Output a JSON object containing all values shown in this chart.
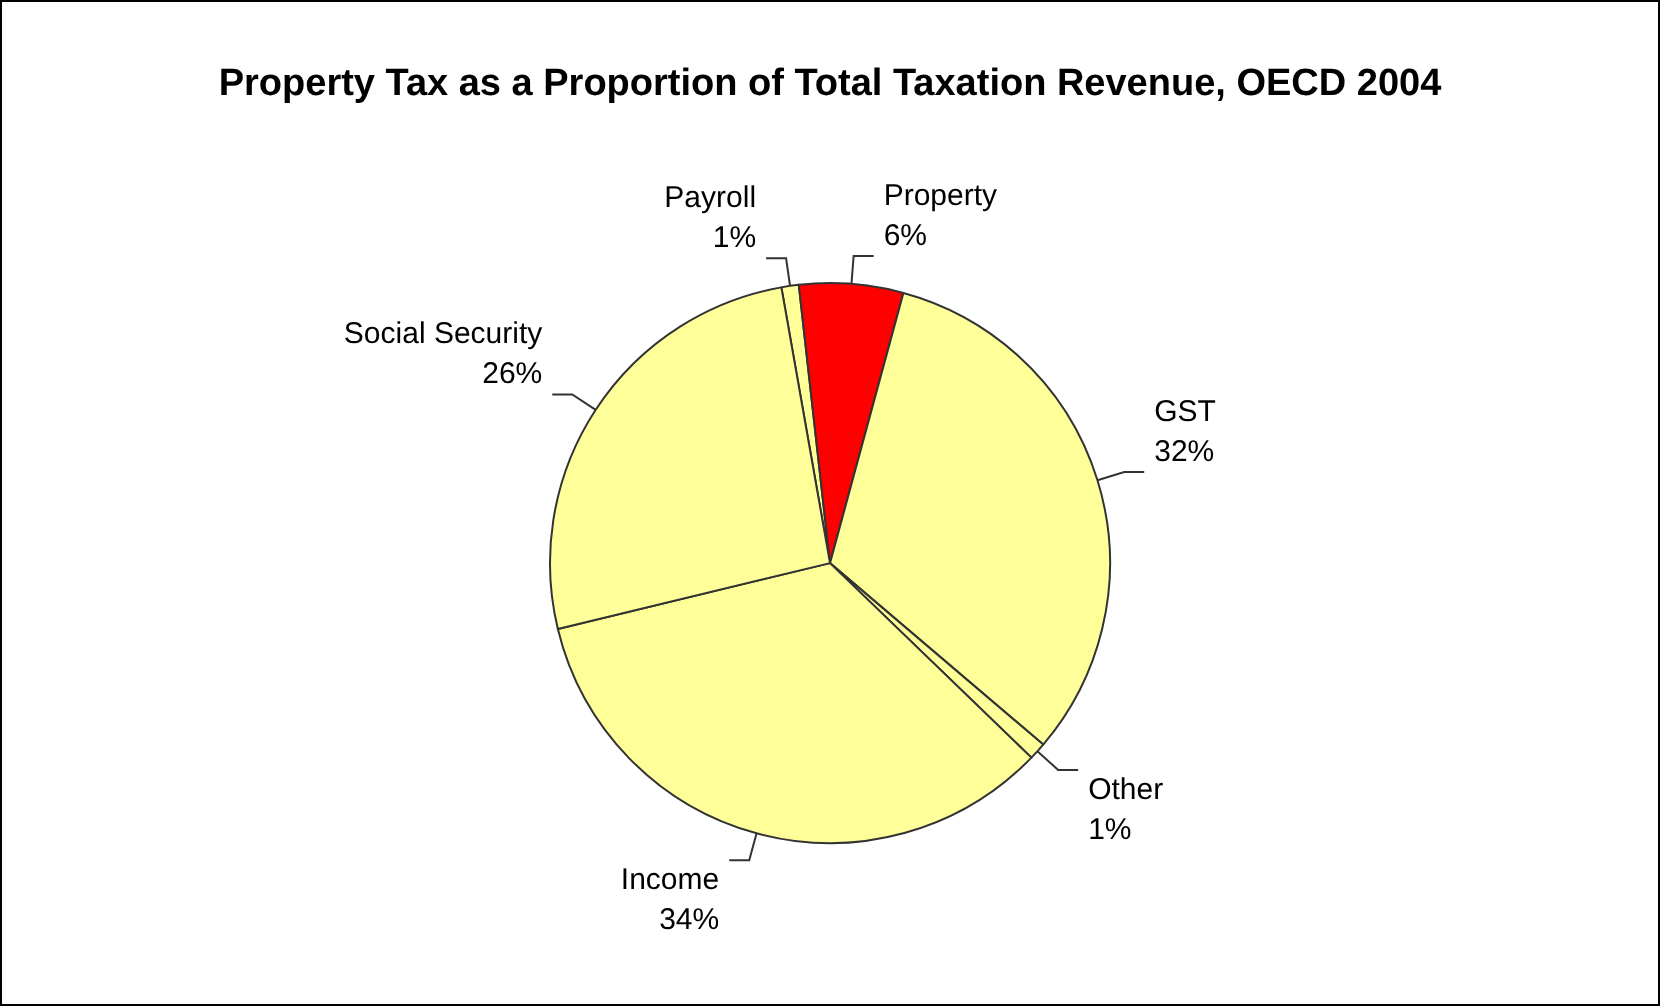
{
  "chart_data": {
    "type": "pie",
    "title": "Property Tax as a Proportion of Total Taxation Revenue, OECD 2004",
    "categories": [
      "Payroll",
      "Property",
      "GST",
      "Other",
      "Income",
      "Social Security"
    ],
    "values": [
      1,
      6,
      32,
      1,
      34,
      26
    ],
    "colors": [
      "#ffff99",
      "#ff0000",
      "#ffff99",
      "#ffff99",
      "#ffff99",
      "#ffff99"
    ],
    "value_labels": [
      "1%",
      "6%",
      "32%",
      "1%",
      "34%",
      "26%"
    ],
    "legend": false
  }
}
